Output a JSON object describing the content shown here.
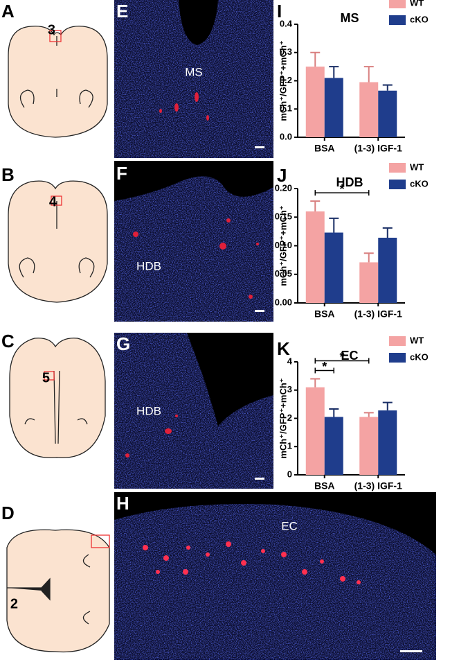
{
  "panels": {
    "diagrams": [
      {
        "letter": "A",
        "number": "3"
      },
      {
        "letter": "B",
        "number": "4"
      },
      {
        "letter": "C",
        "number": "5"
      },
      {
        "letter": "D",
        "number": "2"
      }
    ],
    "images": [
      {
        "letter": "E",
        "label": "MS"
      },
      {
        "letter": "F",
        "label": "HDB"
      },
      {
        "letter": "G",
        "label": "HDB"
      },
      {
        "letter": "H",
        "label": "EC"
      }
    ]
  },
  "chart_data": [
    {
      "type": "bar",
      "panel_label": "I",
      "title": "MS",
      "ylabel": "mCh⁺/GFP⁺+mCh⁺",
      "categories": [
        "BSA",
        "(1-3) IGF-1"
      ],
      "series": [
        {
          "name": "WT",
          "color": "#f4a3a3",
          "values": [
            0.25,
            0.195
          ],
          "errors": [
            0.05,
            0.055
          ]
        },
        {
          "name": "cKO",
          "color": "#1f3d8c",
          "values": [
            0.21,
            0.165
          ],
          "errors": [
            0.04,
            0.02
          ]
        }
      ],
      "ylim": [
        0,
        0.4
      ],
      "yticks": [
        {
          "value": 0,
          "label": "0.0"
        },
        0.1,
        0.2,
        0.3,
        0.4
      ],
      "brackets": []
    },
    {
      "type": "bar",
      "panel_label": "J",
      "title": "HDB",
      "ylabel": "mCh⁺/GFP⁺+mCh⁺",
      "categories": [
        "BSA",
        "(1-3) IGF-1"
      ],
      "series": [
        {
          "name": "WT",
          "color": "#f4a3a3",
          "values": [
            0.16,
            0.071
          ],
          "errors": [
            0.018,
            0.016
          ]
        },
        {
          "name": "cKO",
          "color": "#1f3d8c",
          "values": [
            0.123,
            0.114
          ],
          "errors": [
            0.025,
            0.017
          ]
        }
      ],
      "ylim": [
        0,
        0.2
      ],
      "yticks": [
        {
          "value": 0,
          "label": "0.00"
        },
        {
          "value": 0.05,
          "label": "0.05"
        },
        {
          "value": 0.1,
          "label": "0.10"
        },
        {
          "value": 0.15,
          "label": "0.15"
        },
        {
          "value": 0.2,
          "label": "0.20"
        }
      ],
      "brackets": [
        {
          "text": "*",
          "from": {
            "category": 0,
            "series": 0
          },
          "to": {
            "category": 1,
            "series": 0
          }
        }
      ]
    },
    {
      "type": "bar",
      "panel_label": "K",
      "title": "EC",
      "ylabel": "mCh⁺/GFP⁺+mCh⁺",
      "categories": [
        "BSA",
        "(1-3) IGF-1"
      ],
      "series": [
        {
          "name": "WT",
          "color": "#f4a3a3",
          "values": [
            3.1,
            2.05
          ],
          "errors": [
            0.3,
            0.15
          ]
        },
        {
          "name": "cKO",
          "color": "#1f3d8c",
          "values": [
            2.05,
            2.28
          ],
          "errors": [
            0.28,
            0.28
          ]
        }
      ],
      "ylim": [
        0,
        4
      ],
      "yticks": [
        0,
        1,
        2,
        3,
        4
      ],
      "brackets": [
        {
          "text": "*",
          "from": {
            "category": 0,
            "series": 0
          },
          "to": {
            "category": 0,
            "series": 1
          }
        },
        {
          "text": "*",
          "from": {
            "category": 0,
            "series": 0
          },
          "to": {
            "category": 1,
            "series": 0
          }
        }
      ]
    }
  ]
}
